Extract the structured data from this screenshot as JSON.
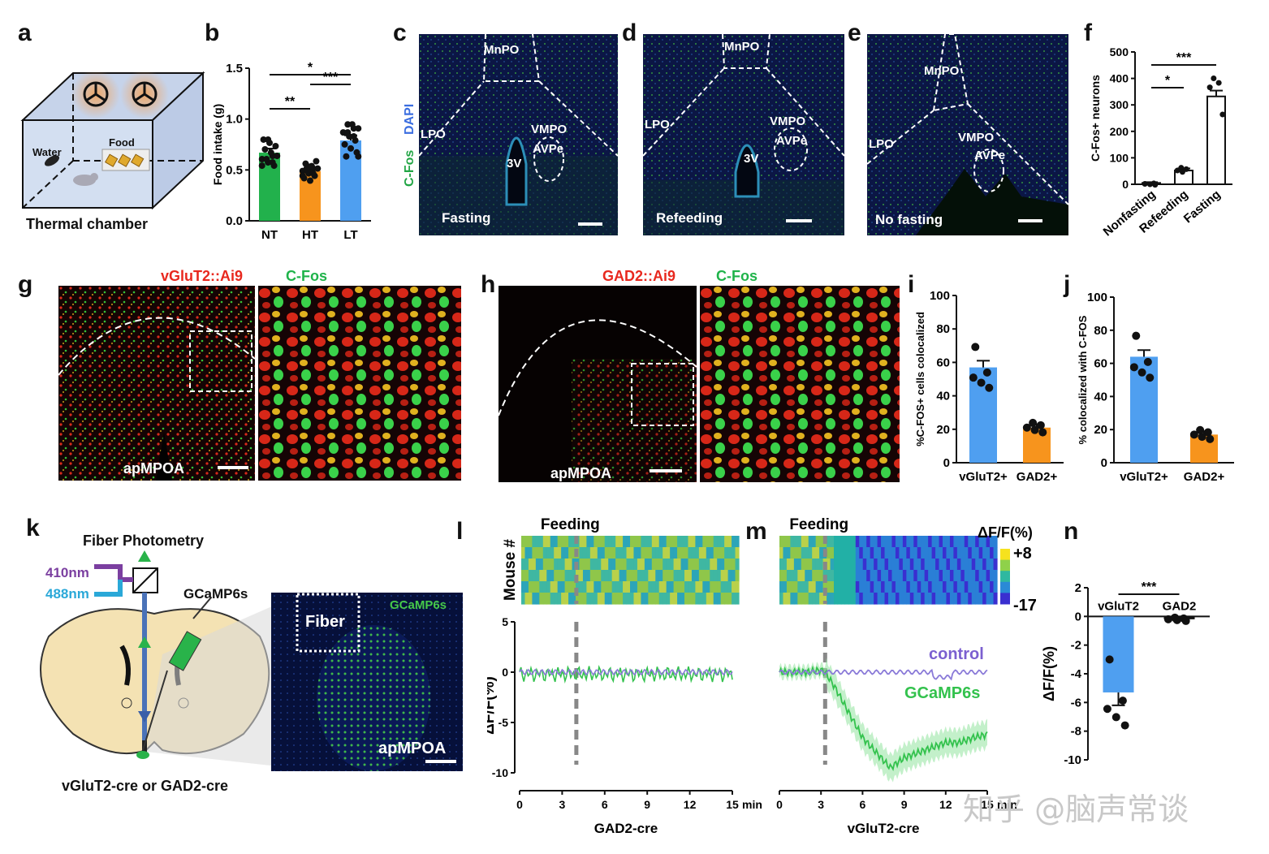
{
  "figure": {
    "panel_labels": {
      "a": "a",
      "b": "b",
      "c": "c",
      "d": "d",
      "e": "e",
      "f": "f",
      "g": "g",
      "h": "h",
      "i": "i",
      "j": "j",
      "k": "k",
      "l": "l",
      "m": "m",
      "n": "n"
    },
    "a": {
      "water": "Water",
      "food": "Food",
      "caption": "Thermal chamber"
    },
    "c": {
      "MnPO": "MnPO",
      "LPO": "LPO",
      "VMPO": "VMPO",
      "AVPe": "AVPe",
      "V3": "3V",
      "condition": "Fasting",
      "dapi": "DAPI",
      "cfos": "C-Fos"
    },
    "d": {
      "MnPO": "MnPO",
      "LPO": "LPO",
      "VMPO": "VMPO",
      "AVPe": "AVPe",
      "V3": "3V",
      "condition": "Refeeding"
    },
    "e": {
      "MnPO": "MnPO",
      "LPO": "LPO",
      "VMPO": "VMPO",
      "AVPe": "AVPe",
      "condition": "No fasting"
    },
    "g": {
      "ai9": "vGluT2::Ai9",
      "cfos": "C-Fos",
      "region": "apMPOA"
    },
    "h": {
      "ai9": "GAD2::Ai9",
      "cfos": "C-Fos",
      "region": "apMPOA"
    },
    "k": {
      "photometry": "Fiber Photometry",
      "nm410": "410nm",
      "nm488": "488nm",
      "gcamp": "GCaMP6s",
      "mice": "vGluT2-cre or GAD2-cre",
      "fiber": "Fiber",
      "gcamp_img": "GCaMP6s",
      "region": "apMPOA"
    },
    "watermark": "知乎 @脑声常谈"
  },
  "colors": {
    "green": "#22b14c",
    "orange": "#f7941d",
    "blue": "#4f9ff0",
    "purple": "#7b5fd0",
    "traceGreen": "#33c24d",
    "traceBlue": "#8a7ad8",
    "dashgray": "#888888"
  },
  "chart_data": [
    {
      "id": "b",
      "type": "bar",
      "ylabel": "Food intake (g)",
      "ylim": [
        0,
        1.5
      ],
      "yticks": [
        "0.0",
        "0.5",
        "1.0",
        "1.5"
      ],
      "categories": [
        "NT",
        "HT",
        "LT"
      ],
      "values": [
        0.67,
        0.49,
        0.79
      ],
      "errors": [
        0.04,
        0.03,
        0.05
      ],
      "significance": [
        {
          "pair": [
            "NT",
            "LT"
          ],
          "label": "*"
        },
        {
          "pair": [
            "HT",
            "LT"
          ],
          "label": "***"
        },
        {
          "pair": [
            "NT",
            "HT"
          ],
          "label": "**"
        }
      ]
    },
    {
      "id": "f",
      "type": "bar",
      "ylabel": "C-Fos+ neurons",
      "ylim": [
        0,
        500
      ],
      "yticks": [
        "0",
        "100",
        "200",
        "300",
        "400",
        "500"
      ],
      "categories": [
        "Nonfasting",
        "Refeeding",
        "Fasting"
      ],
      "values": [
        5,
        52,
        332
      ],
      "errors": [
        3,
        8,
        22
      ],
      "significance": [
        {
          "pair": [
            "Nonfasting",
            "Fasting"
          ],
          "label": "***"
        },
        {
          "pair": [
            "Nonfasting",
            "Refeeding"
          ],
          "label": "*"
        }
      ]
    },
    {
      "id": "i",
      "type": "bar",
      "ylabel": "%C-FOS+ cells colocalized",
      "ylim": [
        0,
        100
      ],
      "yticks": [
        "0",
        "20",
        "40",
        "60",
        "80",
        "100"
      ],
      "categories": [
        "vGluT2+",
        "GAD2+"
      ],
      "values": [
        57,
        21
      ],
      "errors": [
        4,
        2
      ]
    },
    {
      "id": "j",
      "type": "bar",
      "ylabel": "% colocalized with C-FOS",
      "ylim": [
        0,
        100
      ],
      "yticks": [
        "0",
        "20",
        "40",
        "60",
        "80",
        "100"
      ],
      "categories": [
        "vGluT2+",
        "GAD2+"
      ],
      "values": [
        64,
        17
      ],
      "errors": [
        4,
        2
      ]
    },
    {
      "id": "l",
      "type": "line",
      "title": "Feeding",
      "heatmap_ylabel": "Mouse #",
      "ylabel": "ΔF/F(%)",
      "xlabel": "GAD2-cre",
      "xunit": "min",
      "ylim": [
        -10,
        5
      ],
      "yticks": [
        "5",
        "0",
        "-5",
        "-10"
      ],
      "xticks": [
        "0",
        "3",
        "6",
        "9",
        "12",
        "15"
      ],
      "feeding_time": 4,
      "series": [
        {
          "name": "GCaMP6s",
          "mean": -0.2
        },
        {
          "name": "control",
          "mean": 0
        }
      ]
    },
    {
      "id": "m",
      "type": "line",
      "title": "Feeding",
      "colorbar_label": "ΔF/F(%)",
      "colorbar_max": "+8",
      "colorbar_min": "-17",
      "xlabel": "vGluT2-cre",
      "xunit": "min",
      "xticks": [
        "0",
        "3",
        "6",
        "9",
        "12",
        "15"
      ],
      "feeding_time": 3.3,
      "series": [
        {
          "name": "control"
        },
        {
          "name": "GCaMP6s"
        }
      ],
      "gcamp_x": [
        0,
        1,
        2,
        3,
        3.3,
        4,
        5,
        6,
        7,
        8,
        9,
        10,
        11,
        12,
        13,
        14,
        15
      ],
      "gcamp_y": [
        0,
        0,
        0,
        0.2,
        0,
        -1.5,
        -4,
        -6.5,
        -8,
        -9.5,
        -8.5,
        -8,
        -7.5,
        -7,
        -7,
        -6.5,
        -6.2
      ]
    },
    {
      "id": "n",
      "type": "bar",
      "ylabel": "ΔF/F(%)",
      "ylim": [
        -10,
        2
      ],
      "yticks": [
        "2",
        "0",
        "-2",
        "-4",
        "-6",
        "-8",
        "-10"
      ],
      "categories": [
        "vGluT2",
        "GAD2"
      ],
      "values": [
        -5.3,
        -0.2
      ],
      "errors": [
        0.9,
        0.1
      ],
      "significance": [
        {
          "pair": [
            "vGluT2",
            "GAD2"
          ],
          "label": "***"
        }
      ]
    }
  ]
}
